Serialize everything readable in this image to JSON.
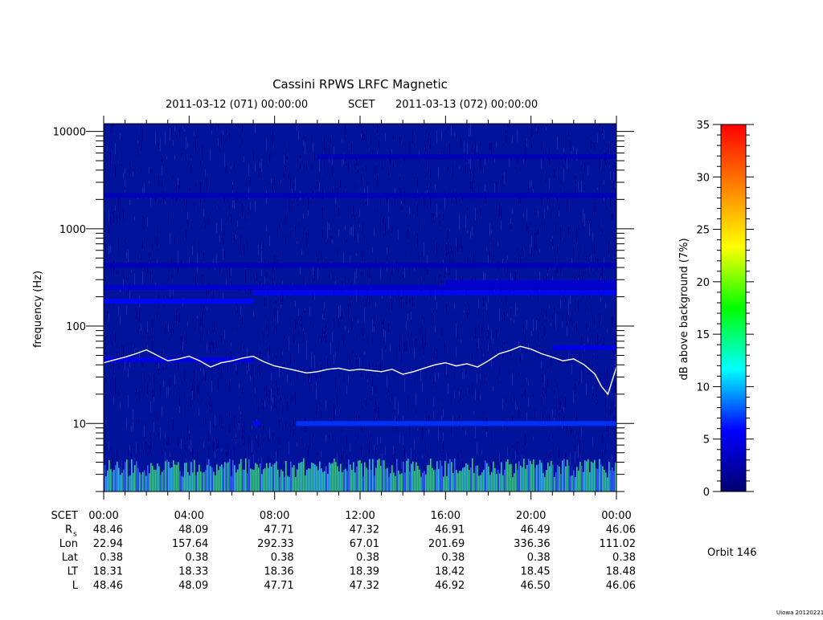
{
  "chart_data": {
    "type": "heatmap",
    "title": "Cassini RPWS LRFC Magnetic",
    "subtitle": {
      "start": "2011-03-12 (071) 00:00:00",
      "frame": "SCET",
      "end": "2011-03-13 (072) 00:00:00"
    },
    "ylabel": "frequency (Hz)",
    "yscale": "log",
    "ylim": [
      2,
      12000
    ],
    "y_ticks": [
      10,
      100,
      1000,
      10000
    ],
    "y_tick_labels": [
      "10",
      "100",
      "1000",
      "10000"
    ],
    "xlim_hours": [
      0,
      24
    ],
    "x_ticks_hours": [
      0,
      4,
      8,
      12,
      16,
      20,
      24
    ],
    "x_tick_labels": [
      "00:00",
      "04:00",
      "08:00",
      "12:00",
      "16:00",
      "20:00",
      "00:00"
    ],
    "colorbar": {
      "label": "dB above background (7%)",
      "range": [
        0,
        35
      ],
      "ticks": [
        0,
        5,
        10,
        15,
        20,
        25,
        30,
        35
      ],
      "tick_labels": [
        "0",
        "5",
        "10",
        "15",
        "20",
        "25",
        "30",
        "35"
      ],
      "stops": [
        "#000070",
        "#0000ff",
        "#00ffff",
        "#00ff00",
        "#ffff00",
        "#ff8000",
        "#ff0000"
      ]
    },
    "bands": [
      {
        "freq_hz": 10,
        "t_start": 9,
        "t_end": 24,
        "level": 7
      },
      {
        "freq_hz": 10,
        "t_start": 7,
        "t_end": 7.3,
        "level": 6
      },
      {
        "freq_hz": 45,
        "t_start": 0,
        "t_end": 7,
        "level": 5
      },
      {
        "freq_hz": 60,
        "t_start": 21,
        "t_end": 24,
        "level": 5
      },
      {
        "freq_hz": 180,
        "t_start": 0,
        "t_end": 7,
        "level": 6
      },
      {
        "freq_hz": 220,
        "t_start": 7,
        "t_end": 24,
        "level": 6
      },
      {
        "freq_hz": 250,
        "t_start": 0,
        "t_end": 24,
        "level": 4
      },
      {
        "freq_hz": 280,
        "t_start": 16,
        "t_end": 24,
        "level": 4
      },
      {
        "freq_hz": 420,
        "t_start": 0,
        "t_end": 24,
        "level": 3
      },
      {
        "freq_hz": 2200,
        "t_start": 0,
        "t_end": 24,
        "level": 3
      },
      {
        "freq_hz": 5500,
        "t_start": 10,
        "t_end": 24,
        "level": 3
      }
    ],
    "series": [
      {
        "x_hours": [
          0,
          0.5,
          1,
          1.5,
          2,
          2.5,
          3,
          3.5,
          4,
          4.5,
          5,
          5.5,
          6,
          6.5,
          7,
          7.5,
          8,
          8.5,
          9,
          9.5,
          10,
          10.5,
          11,
          11.5,
          12,
          12.5,
          13,
          13.5,
          14,
          14.5,
          15,
          15.5,
          16,
          16.5,
          17,
          17.5,
          18,
          18.5,
          19,
          19.5,
          20,
          20.5,
          21,
          21.5,
          22,
          22.5,
          23,
          23.3,
          23.6,
          24
        ],
        "freq_hz": [
          42,
          45,
          48,
          52,
          57,
          50,
          44,
          46,
          49,
          44,
          38,
          42,
          44,
          47,
          49,
          43,
          39,
          37,
          35,
          33,
          34,
          36,
          37,
          35,
          36,
          35,
          34,
          36,
          32,
          34,
          37,
          40,
          42,
          39,
          41,
          38,
          44,
          52,
          56,
          62,
          58,
          52,
          48,
          44,
          46,
          40,
          32,
          24,
          20,
          38
        ]
      }
    ],
    "ephemeris": {
      "rows": [
        {
          "label": "SCET",
          "values": [
            "00:00",
            "04:00",
            "08:00",
            "12:00",
            "16:00",
            "20:00",
            "00:00"
          ]
        },
        {
          "label": "R",
          "sub": "s",
          "values": [
            "48.46",
            "48.09",
            "47.71",
            "47.32",
            "46.91",
            "46.49",
            "46.06"
          ]
        },
        {
          "label": "Lon",
          "values": [
            "22.94",
            "157.64",
            "292.33",
            "67.01",
            "201.69",
            "336.36",
            "111.02"
          ]
        },
        {
          "label": "Lat",
          "values": [
            "0.38",
            "0.38",
            "0.38",
            "0.38",
            "0.38",
            "0.38",
            "0.38"
          ]
        },
        {
          "label": "LT",
          "values": [
            "18.31",
            "18.33",
            "18.36",
            "18.39",
            "18.42",
            "18.45",
            "18.48"
          ]
        },
        {
          "label": "L",
          "values": [
            "48.46",
            "48.09",
            "47.71",
            "47.32",
            "46.92",
            "46.50",
            "46.06"
          ]
        }
      ]
    },
    "orbit": "Orbit 146",
    "credit": "Uiowa 20120221"
  }
}
